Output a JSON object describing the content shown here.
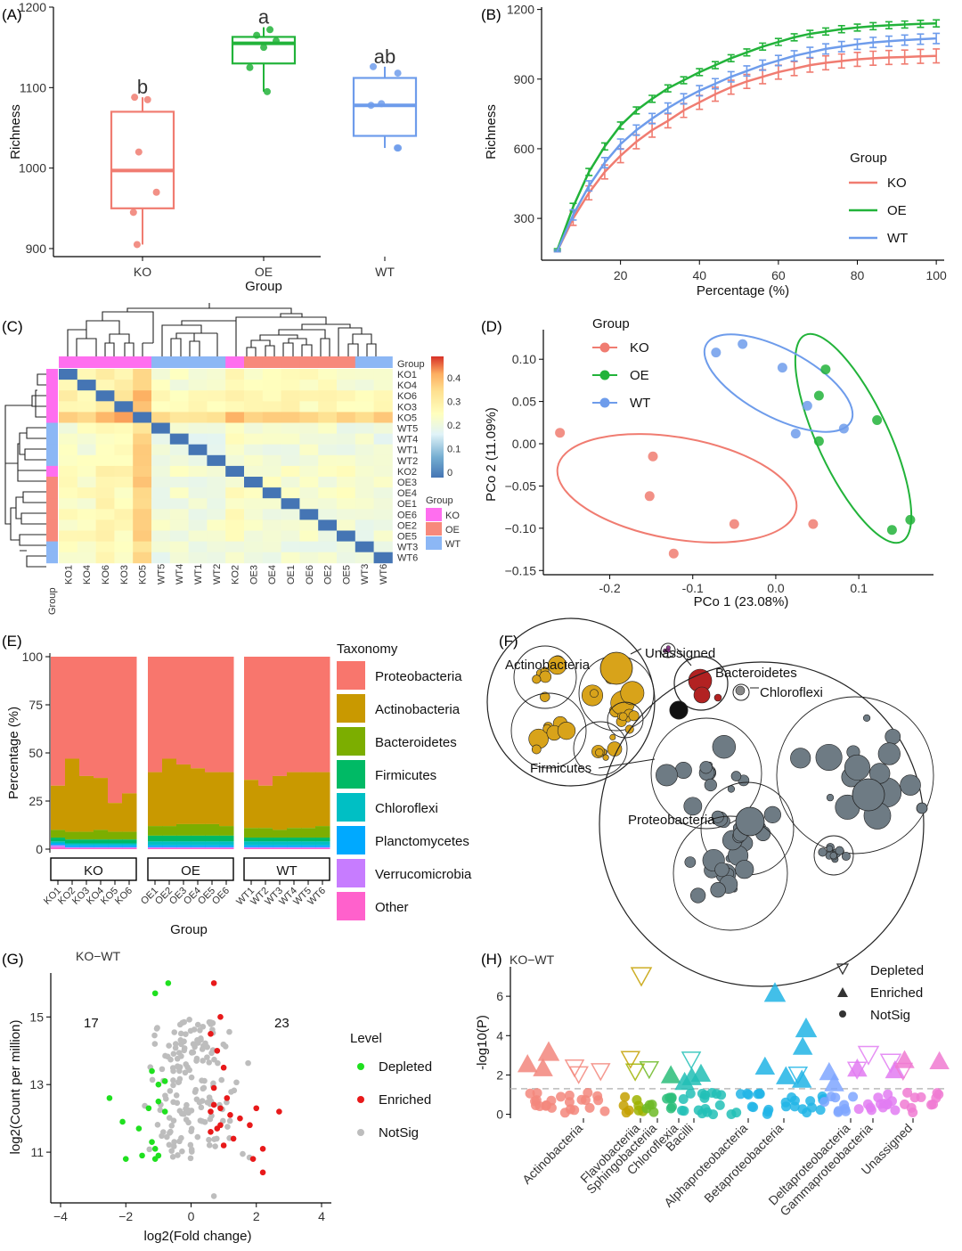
{
  "colors": {
    "KO": "#F07C71",
    "OE": "#22B33A",
    "WT": "#6E9CEB",
    "Depleted": "#1FE01F",
    "Enriched": "#E8191A",
    "NotSig": "#BDBDBD",
    "tax": [
      "#F8766D",
      "#C99900",
      "#7CAE00",
      "#00BA65",
      "#00BFC4",
      "#00A9FF",
      "#C77CFF",
      "#FF61CC"
    ]
  },
  "panels": {
    "A": "(A)",
    "B": "(B)",
    "C": "(C)",
    "D": "(D)",
    "E": "(E)",
    "F": "(F)",
    "G": "(G)",
    "H": "(H)"
  },
  "chart_data": [
    {
      "panel": "A",
      "type": "box",
      "xlabel": "Group",
      "ylabel": "Richness",
      "ylim": [
        890,
        1200
      ],
      "yticks": [
        900,
        1000,
        1100,
        1200
      ],
      "groups": [
        {
          "name": "KO",
          "letter": "b",
          "q1": 950,
          "median": 997,
          "q3": 1070,
          "min": 905,
          "max": 1088,
          "points": [
            905,
            945,
            970,
            1020,
            1085,
            1088
          ]
        },
        {
          "name": "OE",
          "letter": "a",
          "q1": 1130,
          "median": 1155,
          "q3": 1163,
          "min": 1095,
          "max": 1175,
          "points": [
            1095,
            1125,
            1150,
            1158,
            1165,
            1172
          ]
        },
        {
          "name": "WT",
          "letter": "ab",
          "q1": 1040,
          "median": 1078,
          "q3": 1112,
          "min": 1025,
          "max": 1126,
          "points": [
            1025,
            1025,
            1078,
            1080,
            1118,
            1126
          ]
        }
      ]
    },
    {
      "panel": "B",
      "type": "line",
      "xlabel": "Percentage (%)",
      "ylabel": "Richness",
      "xlim": [
        0,
        102
      ],
      "ylim": [
        120,
        1210
      ],
      "xticks": [
        20,
        40,
        60,
        80,
        100
      ],
      "yticks": [
        300,
        600,
        900,
        1200
      ],
      "legend_title": "Group",
      "x": [
        4,
        8,
        12,
        16,
        20,
        24,
        28,
        32,
        36,
        40,
        44,
        48,
        52,
        56,
        60,
        64,
        68,
        72,
        76,
        80,
        84,
        88,
        92,
        96,
        100
      ],
      "series": [
        {
          "name": "KO",
          "values": [
            160,
            300,
            410,
            500,
            570,
            630,
            680,
            720,
            765,
            800,
            835,
            865,
            890,
            910,
            930,
            945,
            960,
            970,
            978,
            985,
            990,
            993,
            995,
            998,
            1000
          ],
          "err": 30
        },
        {
          "name": "OE",
          "values": [
            165,
            350,
            500,
            610,
            700,
            765,
            815,
            860,
            895,
            930,
            960,
            990,
            1015,
            1040,
            1060,
            1080,
            1095,
            1105,
            1115,
            1122,
            1128,
            1132,
            1135,
            1138,
            1140
          ],
          "err": 15
        },
        {
          "name": "WT",
          "values": [
            160,
            315,
            440,
            540,
            620,
            680,
            730,
            775,
            815,
            850,
            880,
            910,
            935,
            960,
            980,
            1000,
            1015,
            1030,
            1040,
            1050,
            1058,
            1063,
            1068,
            1072,
            1075
          ],
          "err": 22
        }
      ]
    },
    {
      "panel": "C",
      "type": "heatmap",
      "legend_title": "Group",
      "colorbar_ticks": [
        "0.4",
        "0.3",
        "0.2",
        "0.1",
        "0"
      ],
      "group_legend": [
        "KO",
        "OE",
        "WT"
      ],
      "group_label": "Group",
      "rows": [
        "KO1",
        "KO4",
        "KO6",
        "KO3",
        "KO5",
        "WT5",
        "WT4",
        "WT1",
        "WT2",
        "KO2",
        "OE3",
        "OE4",
        "OE1",
        "OE6",
        "OE2",
        "OE5",
        "WT3",
        "WT6"
      ],
      "cols": [
        "KO1",
        "KO4",
        "KO6",
        "KO3",
        "KO5",
        "WT5",
        "WT4",
        "WT1",
        "WT2",
        "KO2",
        "OE3",
        "OE4",
        "OE1",
        "OE6",
        "OE2",
        "OE5",
        "WT3",
        "WT6"
      ],
      "col_groups": [
        "KO",
        "KO",
        "KO",
        "KO",
        "KO",
        "WT",
        "WT",
        "WT",
        "WT",
        "KO",
        "OE",
        "OE",
        "OE",
        "OE",
        "OE",
        "OE",
        "WT",
        "WT"
      ]
    },
    {
      "panel": "D",
      "type": "scatter",
      "xlabel": "PCo 1 (23.08%)",
      "ylabel": "PCo 2 (11.09%)",
      "xlim": [
        -0.28,
        0.19
      ],
      "ylim": [
        -0.155,
        0.135
      ],
      "xticks": [
        -0.2,
        -0.1,
        0.0,
        0.1
      ],
      "yticks": [
        0.1,
        0.05,
        0.0,
        -0.05,
        -0.1,
        -0.15
      ],
      "xtick_labels": [
        "-0.2",
        "-0.1",
        "0.0",
        "0.1"
      ],
      "ytick_labels": [
        "0.10",
        "0.05",
        "0.00",
        "−0.05",
        "−0.10",
        "−0.15"
      ],
      "legend_title": "Group",
      "series": [
        {
          "name": "KO",
          "points": [
            [
              -0.26,
              0.013
            ],
            [
              -0.148,
              -0.015
            ],
            [
              -0.152,
              -0.062
            ],
            [
              -0.123,
              -0.13
            ],
            [
              -0.05,
              -0.095
            ],
            [
              0.045,
              -0.095
            ]
          ]
        },
        {
          "name": "OE",
          "points": [
            [
              0.06,
              0.088
            ],
            [
              0.052,
              0.057
            ],
            [
              0.052,
              0.003
            ],
            [
              0.122,
              0.028
            ],
            [
              0.14,
              -0.102
            ],
            [
              0.162,
              -0.09
            ]
          ]
        },
        {
          "name": "WT",
          "points": [
            [
              -0.072,
              0.108
            ],
            [
              -0.04,
              0.118
            ],
            [
              0.008,
              0.09
            ],
            [
              0.038,
              0.045
            ],
            [
              0.024,
              0.012
            ],
            [
              0.082,
              0.018
            ]
          ]
        }
      ]
    },
    {
      "panel": "E",
      "type": "stacked_bar",
      "ylabel": "Percentage (%)",
      "xlabel": "Group",
      "legend_title": "Taxonomy",
      "yticks": [
        0,
        25,
        50,
        75,
        100
      ],
      "taxa": [
        "Proteobacteria",
        "Actinobacteria",
        "Bacteroidetes",
        "Firmicutes",
        "Chloroflexi",
        "Planctomycetes",
        "Verrucomicrobia",
        "Other"
      ],
      "facets": [
        "KO",
        "OE",
        "WT"
      ],
      "samples": [
        "KO1",
        "KO2",
        "KO3",
        "KO4",
        "KO5",
        "KO6",
        "OE1",
        "OE2",
        "OE3",
        "OE4",
        "OE5",
        "OE6",
        "WT1",
        "WT2",
        "WT3",
        "WT4",
        "WT5",
        "WT6"
      ],
      "values": [
        [
          67,
          23,
          4,
          2,
          1,
          1,
          1,
          1
        ],
        [
          53,
          38,
          4,
          2,
          1,
          1,
          0.5,
          0.5
        ],
        [
          62,
          29,
          4,
          2,
          1,
          1,
          0.5,
          0.5
        ],
        [
          63,
          27,
          5,
          2,
          1,
          1,
          0.5,
          0.5
        ],
        [
          76,
          15,
          4,
          2,
          1,
          1,
          0.5,
          0.5
        ],
        [
          71,
          20,
          4,
          2,
          1,
          1,
          0.5,
          0.5
        ],
        [
          60,
          28,
          5,
          3,
          2,
          1,
          0.5,
          0.5
        ],
        [
          53,
          35,
          5,
          3,
          2,
          1,
          0.5,
          0.5
        ],
        [
          56,
          31,
          6,
          3,
          2,
          1,
          0.5,
          0.5
        ],
        [
          58,
          29,
          6,
          3,
          2,
          1,
          0.5,
          0.5
        ],
        [
          60,
          27,
          6,
          3,
          2,
          1,
          0.5,
          0.5
        ],
        [
          60,
          28,
          5,
          3,
          2,
          1,
          0.5,
          0.5
        ],
        [
          64,
          25,
          5,
          2,
          2,
          1,
          0.5,
          0.5
        ],
        [
          67,
          22,
          5,
          2,
          2,
          1,
          0.5,
          0.5
        ],
        [
          62,
          28,
          4,
          2,
          2,
          1,
          0.5,
          0.5
        ],
        [
          60,
          29,
          5,
          2,
          2,
          1,
          0.5,
          0.5
        ],
        [
          60,
          29,
          5,
          2,
          2,
          1,
          0.5,
          0.5
        ],
        [
          60,
          28,
          6,
          2,
          2,
          1,
          0.5,
          0.5
        ]
      ]
    },
    {
      "panel": "G",
      "type": "scatter",
      "title": "KO−WT",
      "xlabel": "log2(Fold change)",
      "ylabel": "log2(Count per million)",
      "xlim": [
        -4.3,
        4.3
      ],
      "ylim": [
        9.5,
        16.3
      ],
      "xticks": [
        -4,
        -2,
        0,
        2,
        4
      ],
      "yticks": [
        11,
        13,
        15
      ],
      "xtick_labels": [
        "−4",
        "−2",
        "0",
        "2",
        "4"
      ],
      "counts": {
        "depleted": "17",
        "enriched": "23"
      },
      "legend_title": "Level",
      "levels": [
        "Depleted",
        "Enriched",
        "NotSig"
      ]
    },
    {
      "panel": "H",
      "type": "manhattan",
      "title": "KO−WT",
      "ylabel": "-log10(P)",
      "ylim": [
        -0.2,
        7.5
      ],
      "yticks": [
        0,
        2,
        4,
        6
      ],
      "legend": [
        "Depleted",
        "Enriched",
        "NotSig"
      ],
      "taxa": [
        "Actinobacteria",
        "Flavobacteriia",
        "Sphingobacteriia",
        "Chloroflexia",
        "Bacilli",
        "Alphaproteobacteria",
        "Betaproteobacteria",
        "Deltaproteobacteria",
        "Gammaproteobacteria",
        "Unassigned"
      ]
    }
  ],
  "packing": {
    "labels": [
      "Actinobacteria",
      "Unassigned",
      "Bacteroidetes",
      "Chloroflexi",
      "Firmicutes",
      "Proteobacteria"
    ]
  }
}
